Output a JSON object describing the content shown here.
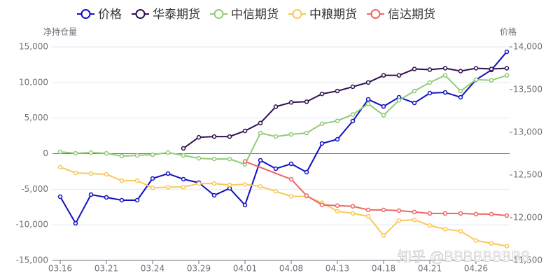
{
  "chart_data": {
    "type": "line",
    "y_axis_label": "净持仓量",
    "y2_axis_label": "价格",
    "watermark": "知乎 @BBBBBBBB8",
    "categories": [
      "03.16",
      null,
      null,
      "03.21",
      null,
      null,
      "03.24",
      null,
      null,
      "03.29",
      null,
      null,
      "04.01",
      null,
      null,
      "04.08",
      null,
      null,
      "04.13",
      null,
      null,
      "04.18",
      null,
      null,
      "04.21",
      null,
      null,
      "04.26",
      null,
      null
    ],
    "ylim": [
      -15000,
      15000
    ],
    "yticks": [
      {
        "value": -15000,
        "label": "-15,000"
      },
      {
        "value": -10000,
        "label": "-10,000"
      },
      {
        "value": -5000,
        "label": "-5,000"
      },
      0,
      {
        "value": 5000,
        "label": "5,000"
      },
      {
        "value": 10000,
        "label": "10,000"
      },
      {
        "value": 15000,
        "label": "15,000"
      }
    ],
    "y2lim": [
      11500,
      14000
    ],
    "y2ticks": [
      {
        "value": 11500,
        "label": "11,500"
      },
      {
        "value": 12000,
        "label": "12,000"
      },
      {
        "value": 12500,
        "label": "12,500"
      },
      {
        "value": 13000,
        "label": "13,000"
      },
      {
        "value": 13500,
        "label": "13,500"
      },
      {
        "value": 14000,
        "label": "14,000"
      }
    ],
    "grid": true,
    "connect_nulls": true,
    "legend": "top",
    "series": [
      {
        "name": "价格",
        "color": "#1010c0",
        "axis": "y2",
        "values": [
          12246,
          11934,
          12270,
          12238,
          12205,
          12205,
          12459,
          12516,
          12451,
          12410,
          12262,
          12344,
          12148,
          12672,
          12574,
          12631,
          12533,
          12869,
          12918,
          13131,
          13385,
          13303,
          13410,
          13344,
          13459,
          13467,
          13410,
          13615,
          13730,
          13943
        ]
      },
      {
        "name": "华泰期货",
        "color": "#2f0f4f",
        "values": [
          null,
          null,
          null,
          null,
          null,
          null,
          null,
          null,
          740,
          2300,
          2400,
          2400,
          3200,
          4300,
          6600,
          7200,
          7300,
          8400,
          8800,
          9400,
          10000,
          11000,
          11000,
          11900,
          11800,
          12000,
          11600,
          12000,
          11900,
          12000
        ]
      },
      {
        "name": "中信期货",
        "color": "#91cc75",
        "values": [
          250,
          50,
          150,
          50,
          -350,
          -250,
          -150,
          150,
          -250,
          -650,
          -750,
          -750,
          -1500,
          2900,
          2400,
          2700,
          2900,
          4200,
          4600,
          5500,
          7000,
          5400,
          7500,
          8800,
          10000,
          11000,
          8800,
          10400,
          10300,
          11000
        ]
      },
      {
        "name": "中粮期货",
        "color": "#fac858",
        "values": [
          -1900,
          -2700,
          -2800,
          -2900,
          -3800,
          -3800,
          -4800,
          -4700,
          -4700,
          -4200,
          -4200,
          -4400,
          -4300,
          -4600,
          -5300,
          -6000,
          -6000,
          -6900,
          -8100,
          -8400,
          -8800,
          -11500,
          -9400,
          -9300,
          -10100,
          -10600,
          -10900,
          -12200,
          -12600,
          -13000
        ]
      },
      {
        "name": "信达期货",
        "color": "#ee6666",
        "values": [
          null,
          null,
          null,
          null,
          null,
          null,
          null,
          null,
          null,
          null,
          null,
          null,
          -1100,
          null,
          null,
          -3600,
          -5900,
          -7200,
          -7300,
          -7400,
          -7900,
          -7900,
          -8000,
          -8200,
          -8400,
          -8400,
          -8400,
          -8500,
          -8500,
          -8700
        ]
      }
    ]
  }
}
